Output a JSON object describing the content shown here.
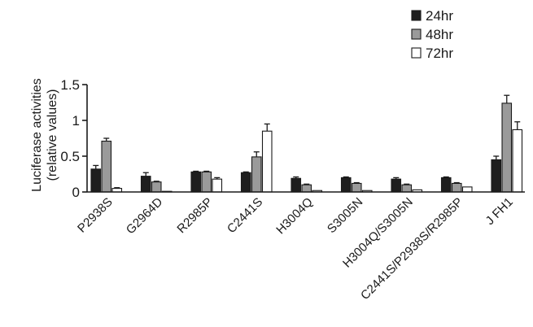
{
  "chart_data": {
    "type": "bar",
    "title": "",
    "xlabel": "",
    "ylabel_lines": [
      "Luciferase activities",
      "(relative values)"
    ],
    "ylim": [
      0,
      1.5
    ],
    "yticks": [
      0,
      0.5,
      1,
      1.5
    ],
    "ytick_labels": [
      "0",
      "0.5",
      "1",
      "1.5"
    ],
    "grid": false,
    "legend_position": "top-right",
    "categories": [
      "P2938S",
      "G2964D",
      "R2985P",
      "C2441S",
      "H3004Q",
      "S3005N",
      "H3004Q/S3005N",
      "C2441S/P2938S/R2985P",
      "J FH1"
    ],
    "series": [
      {
        "name": "24hr",
        "color": "#1e1e1e",
        "values": [
          0.32,
          0.22,
          0.28,
          0.27,
          0.19,
          0.2,
          0.18,
          0.2,
          0.45
        ],
        "errors": [
          0.05,
          0.05,
          0.01,
          0.01,
          0.02,
          0.01,
          0.02,
          0.01,
          0.05
        ]
      },
      {
        "name": "48hr",
        "color": "#9a9a9a",
        "values": [
          0.71,
          0.14,
          0.28,
          0.49,
          0.1,
          0.12,
          0.1,
          0.12,
          1.24
        ],
        "errors": [
          0.04,
          0.01,
          0.01,
          0.07,
          0.01,
          0.01,
          0.01,
          0.01,
          0.11
        ]
      },
      {
        "name": "72hr",
        "color": "#ffffff",
        "values": [
          0.05,
          0.0,
          0.18,
          0.85,
          0.02,
          0.02,
          0.03,
          0.07,
          0.87
        ],
        "errors": [
          0.01,
          0.0,
          0.02,
          0.1,
          0.0,
          0.0,
          0.0,
          0.0,
          0.11
        ]
      }
    ]
  }
}
